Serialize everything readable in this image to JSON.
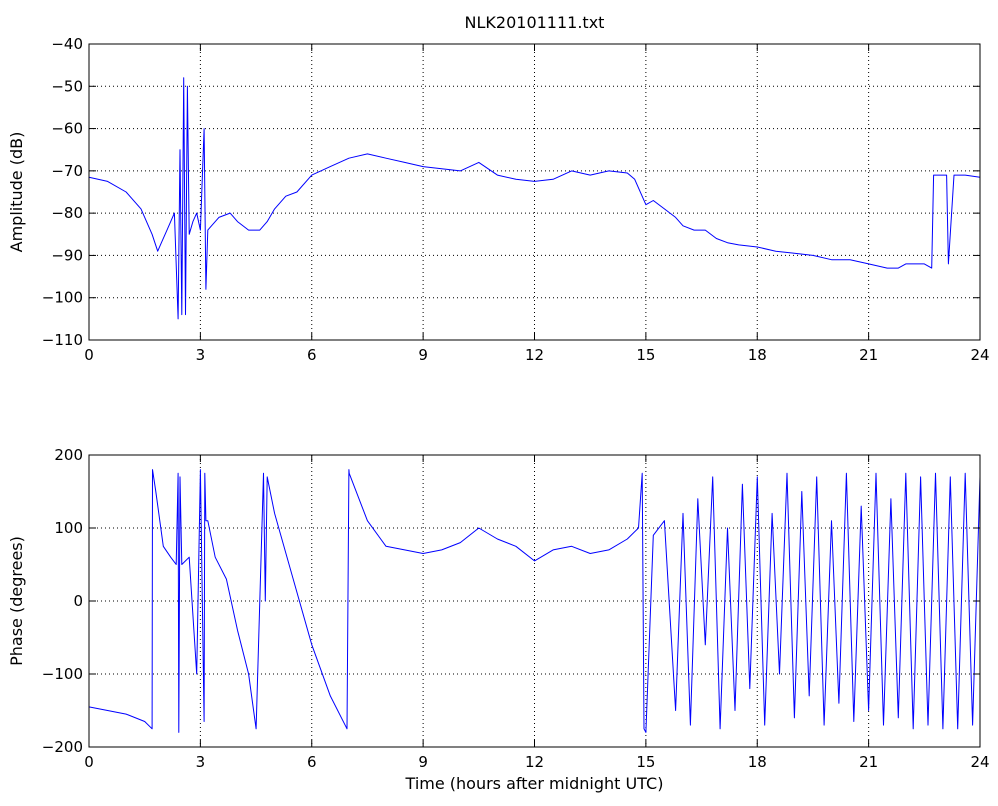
{
  "chart_data": [
    {
      "type": "line",
      "title": "NLK20101111.txt",
      "xlabel": "",
      "ylabel": "Amplitude (dB)",
      "xlim": [
        0,
        24
      ],
      "ylim": [
        -110,
        -40
      ],
      "xticks": [
        0,
        3,
        6,
        9,
        12,
        15,
        18,
        21,
        24
      ],
      "yticks": [
        -110,
        -100,
        -90,
        -80,
        -70,
        -60,
        -50,
        -40
      ],
      "xtick_labels": [
        "0",
        "3",
        "6",
        "9",
        "12",
        "15",
        "18",
        "21",
        "24"
      ],
      "ytick_labels": [
        "−110",
        "−100",
        "−90",
        "−80",
        "−70",
        "−60",
        "−50",
        "−40"
      ],
      "grid": true,
      "color": "#0000ff",
      "x": [
        0,
        0.5,
        1.0,
        1.4,
        1.7,
        1.85,
        1.95,
        2.1,
        2.3,
        2.4,
        2.45,
        2.5,
        2.55,
        2.6,
        2.65,
        2.7,
        2.8,
        2.9,
        3.0,
        3.1,
        3.15,
        3.2,
        3.3,
        3.5,
        3.8,
        4.0,
        4.3,
        4.6,
        4.8,
        5.0,
        5.3,
        5.6,
        6.0,
        6.5,
        7.0,
        7.5,
        8.0,
        8.5,
        9.0,
        9.5,
        10.0,
        10.5,
        11.0,
        11.5,
        12.0,
        12.5,
        13.0,
        13.5,
        14.0,
        14.5,
        14.7,
        15.0,
        15.2,
        15.5,
        15.8,
        16.0,
        16.3,
        16.6,
        16.9,
        17.2,
        17.5,
        18.0,
        18.5,
        19.0,
        19.5,
        20.0,
        20.5,
        21.0,
        21.5,
        21.8,
        22.0,
        22.3,
        22.5,
        22.7,
        22.75,
        23.1,
        23.15,
        23.3,
        23.6,
        24.0
      ],
      "y": [
        -71.5,
        -72.5,
        -75,
        -79,
        -85,
        -89,
        -87,
        -84,
        -80,
        -105,
        -65,
        -104,
        -48,
        -104,
        -50,
        -85,
        -82,
        -80,
        -84,
        -60,
        -98,
        -84,
        -83,
        -81,
        -80,
        -82,
        -84,
        -84,
        -82,
        -79,
        -76,
        -75,
        -71,
        -69,
        -67,
        -66,
        -67,
        -68,
        -69,
        -69.5,
        -70,
        -68,
        -71,
        -72,
        -72.5,
        -72,
        -70,
        -71,
        -70,
        -70.5,
        -72,
        -78,
        -77,
        -79,
        -81,
        -83,
        -84,
        -84,
        -86,
        -87,
        -87.5,
        -88,
        -89,
        -89.5,
        -90,
        -91,
        -91,
        -92,
        -93,
        -93,
        -92,
        -92,
        -92,
        -93,
        -71,
        -71,
        -92,
        -71,
        -71,
        -71.5
      ]
    },
    {
      "type": "line",
      "title": "",
      "xlabel": "Time (hours after midnight UTC)",
      "ylabel": "Phase (degrees)",
      "xlim": [
        0,
        24
      ],
      "ylim": [
        -200,
        200
      ],
      "xticks": [
        0,
        3,
        6,
        9,
        12,
        15,
        18,
        21,
        24
      ],
      "yticks": [
        -200,
        -100,
        0,
        100,
        200
      ],
      "xtick_labels": [
        "0",
        "3",
        "6",
        "9",
        "12",
        "15",
        "18",
        "21",
        "24"
      ],
      "ytick_labels": [
        "−200",
        "−100",
        "0",
        "100",
        "200"
      ],
      "grid": true,
      "color": "#0000ff",
      "x": [
        0,
        0.5,
        1.0,
        1.5,
        1.7,
        1.71,
        1.8,
        2.0,
        2.2,
        2.35,
        2.4,
        2.42,
        2.45,
        2.5,
        2.7,
        2.9,
        3.0,
        3.1,
        3.12,
        3.15,
        3.2,
        3.4,
        3.7,
        4.0,
        4.3,
        4.5,
        4.7,
        4.75,
        4.8,
        5.0,
        5.5,
        6.0,
        6.5,
        6.95,
        7.0,
        7.01,
        7.5,
        8.0,
        8.5,
        9.0,
        9.5,
        10.0,
        10.5,
        11.0,
        11.5,
        12.0,
        12.5,
        13.0,
        13.5,
        14.0,
        14.5,
        14.8,
        14.9,
        14.95,
        15.0,
        15.2,
        15.5,
        15.8,
        16.0,
        16.2,
        16.4,
        16.6,
        16.8,
        17.0,
        17.2,
        17.4,
        17.6,
        17.8,
        18.0,
        18.2,
        18.4,
        18.6,
        18.8,
        19.0,
        19.2,
        19.4,
        19.6,
        19.8,
        20.0,
        20.2,
        20.4,
        20.6,
        20.8,
        21.0,
        21.2,
        21.4,
        21.6,
        21.8,
        22.0,
        22.2,
        22.4,
        22.6,
        22.8,
        23.0,
        23.2,
        23.4,
        23.6,
        23.8,
        24.0
      ],
      "y": [
        -145,
        -150,
        -155,
        -165,
        -175,
        180,
        150,
        75,
        60,
        50,
        175,
        -180,
        170,
        50,
        60,
        -100,
        180,
        -165,
        175,
        110,
        110,
        60,
        30,
        -40,
        -100,
        -175,
        175,
        0,
        170,
        120,
        30,
        -60,
        -130,
        -175,
        180,
        175,
        110,
        75,
        70,
        65,
        70,
        80,
        100,
        85,
        75,
        55,
        70,
        75,
        65,
        70,
        85,
        100,
        175,
        -175,
        -180,
        90,
        110,
        -150,
        120,
        -170,
        140,
        -60,
        170,
        -175,
        100,
        -150,
        160,
        -120,
        170,
        -170,
        120,
        -100,
        175,
        -160,
        150,
        -130,
        170,
        -170,
        110,
        -140,
        175,
        -165,
        130,
        -150,
        175,
        -170,
        140,
        -160,
        175,
        -175,
        170,
        -170,
        175,
        -175,
        170,
        -175,
        175,
        -170,
        170
      ]
    }
  ]
}
